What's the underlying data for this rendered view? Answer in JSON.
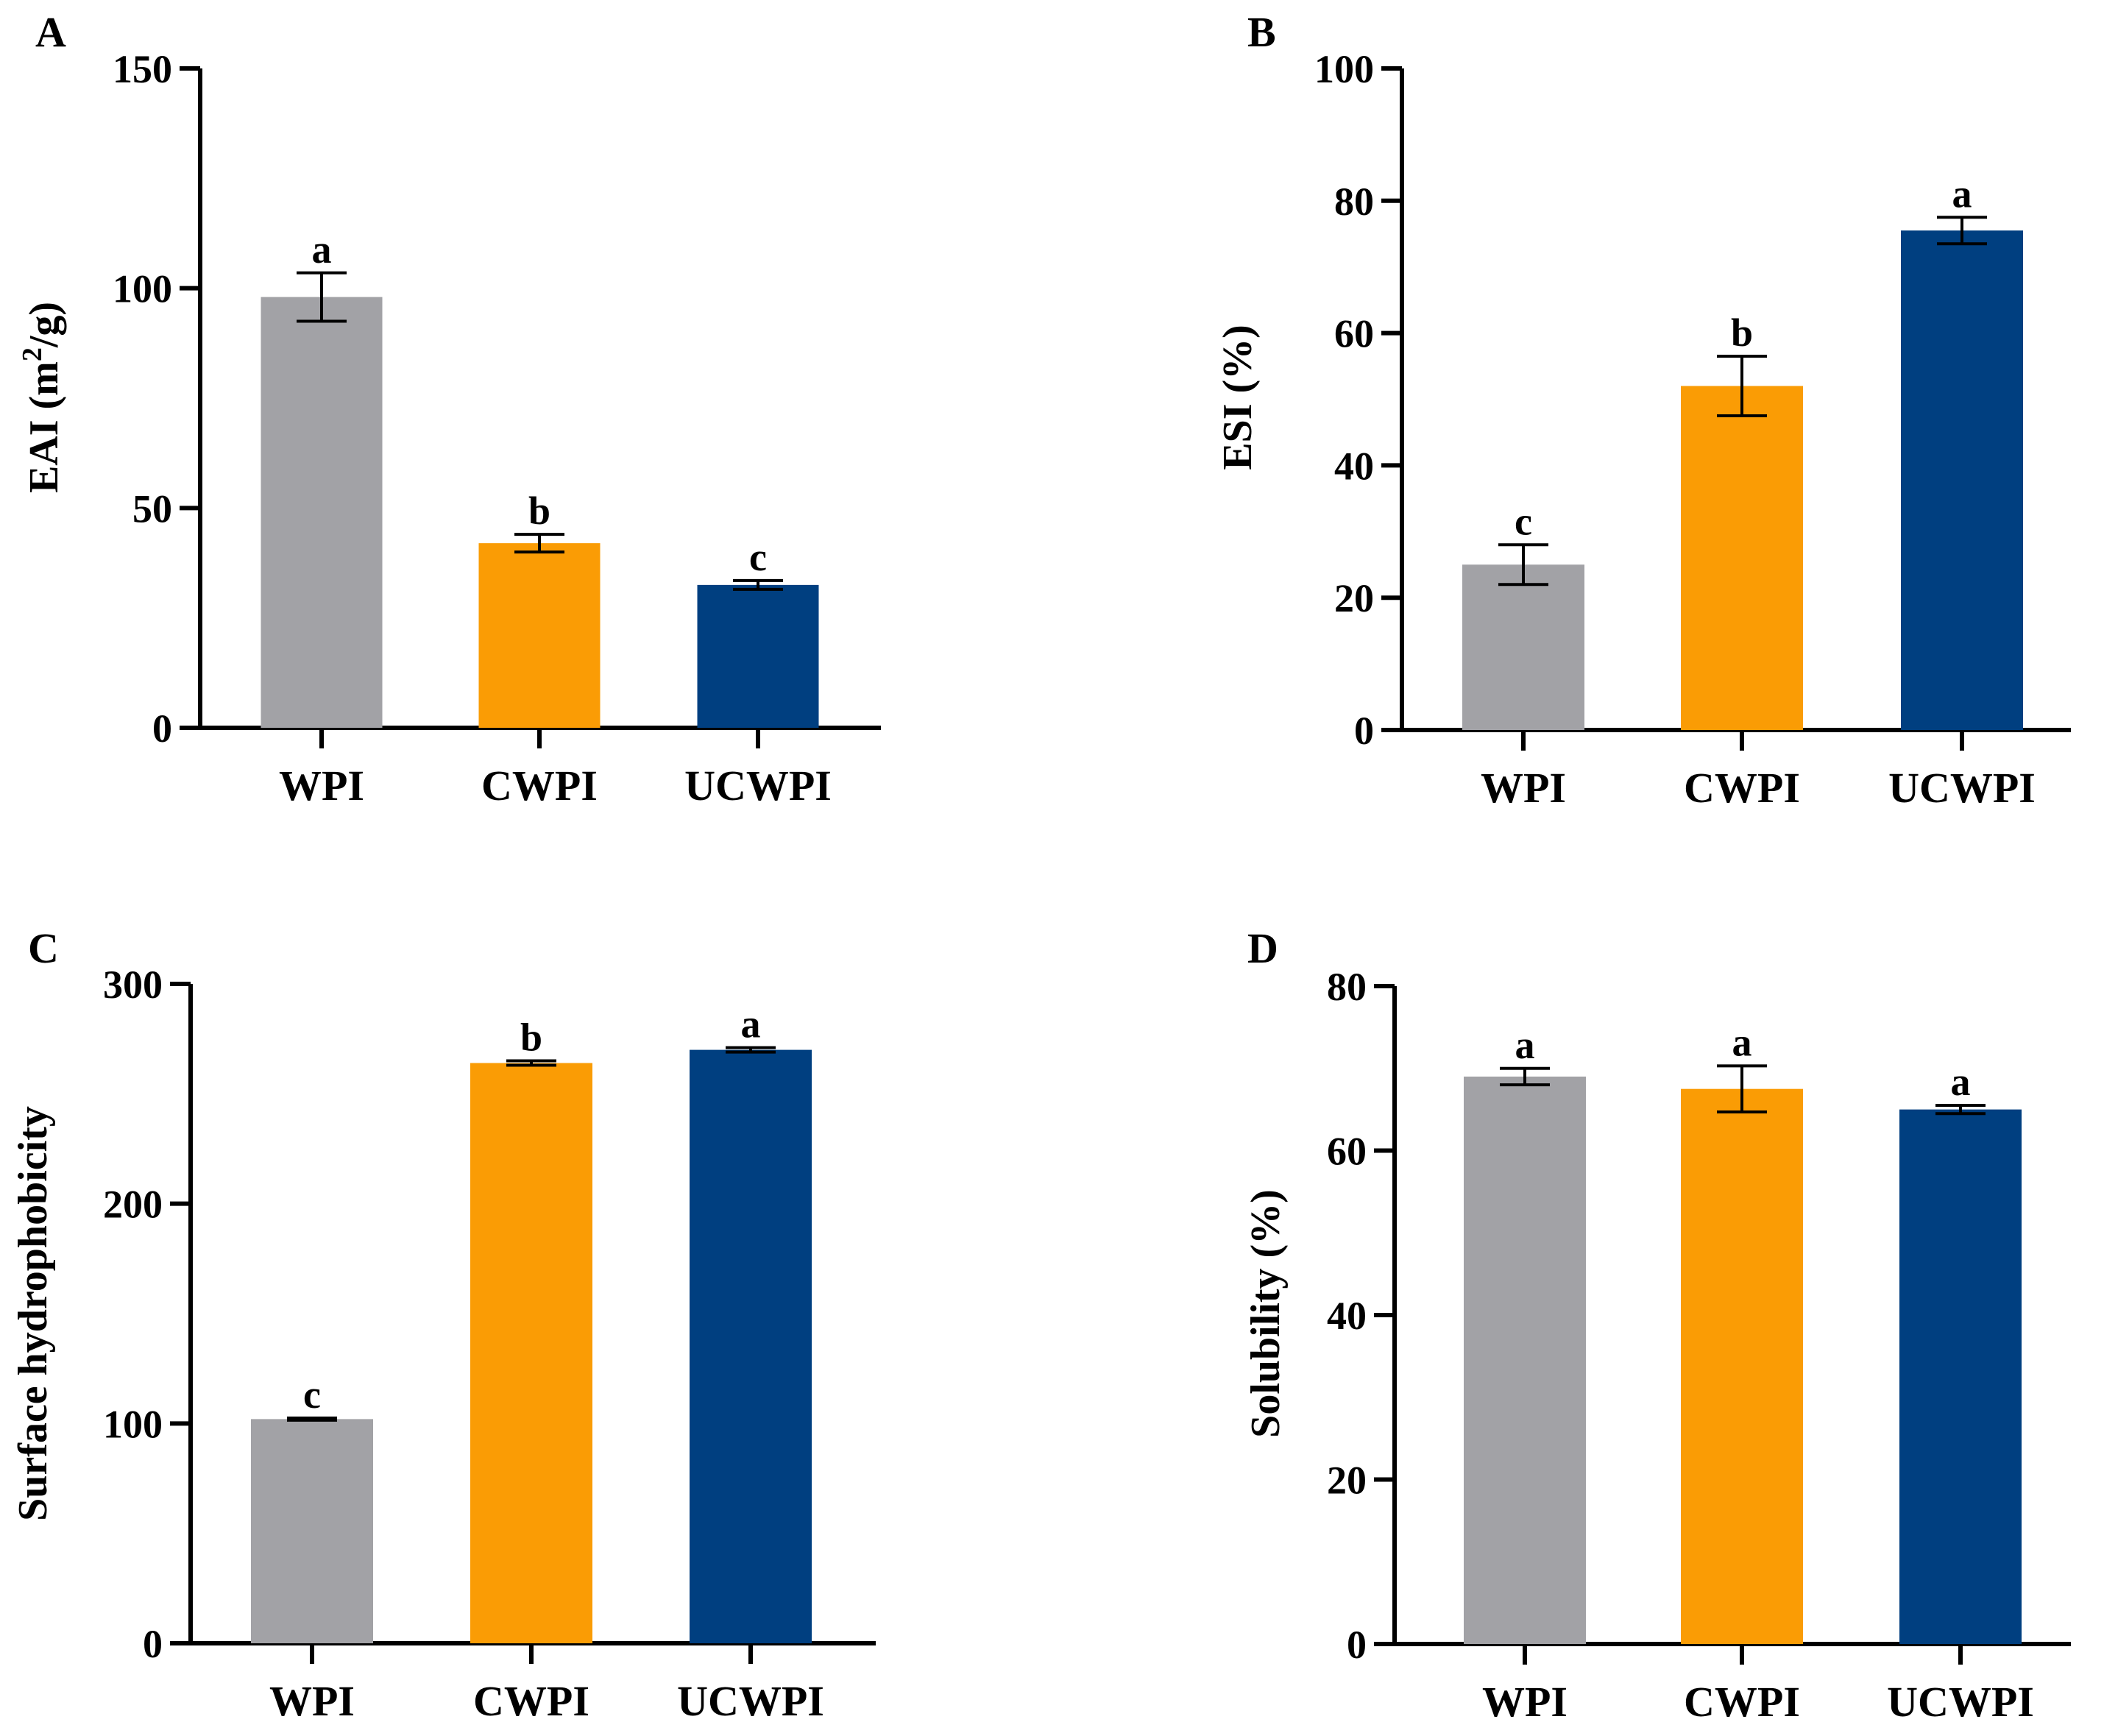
{
  "colors": {
    "WPI": "#a2a2a6",
    "CWPI": "#fa9c05",
    "UCWPI": "#003f80",
    "axis": "#000000"
  },
  "chart_data": [
    {
      "panel": "A",
      "type": "bar",
      "ylabel_main": "EAI (m",
      "ylabel_sup": "2",
      "ylabel_end": "/g)",
      "ylim": [
        0,
        150
      ],
      "yticks": [
        0,
        50,
        100,
        150
      ],
      "categories": [
        "WPI",
        "CWPI",
        "UCWPI"
      ],
      "values": [
        98,
        42,
        32.5
      ],
      "errors": [
        5.5,
        2,
        1
      ],
      "letters": [
        "a",
        "b",
        "c"
      ]
    },
    {
      "panel": "B",
      "type": "bar",
      "ylabel": "ESI (%)",
      "ylim": [
        0,
        100
      ],
      "yticks": [
        0,
        20,
        40,
        60,
        80,
        100
      ],
      "categories": [
        "WPI",
        "CWPI",
        "UCWPI"
      ],
      "values": [
        25,
        52,
        75.5
      ],
      "errors": [
        3,
        4.5,
        2
      ],
      "letters": [
        "c",
        "b",
        "a"
      ]
    },
    {
      "panel": "C",
      "type": "bar",
      "ylabel": "Surface hydrophobicity",
      "ylim": [
        0,
        300
      ],
      "yticks": [
        0,
        100,
        200,
        300
      ],
      "categories": [
        "WPI",
        "CWPI",
        "UCWPI"
      ],
      "values": [
        102,
        264,
        270
      ],
      "errors": [
        0.5,
        1,
        1
      ],
      "letters": [
        "c",
        "b",
        "a"
      ]
    },
    {
      "panel": "D",
      "type": "bar",
      "ylabel": "Solubility (%)",
      "ylim": [
        0,
        80
      ],
      "yticks": [
        0,
        20,
        40,
        60,
        80
      ],
      "categories": [
        "WPI",
        "CWPI",
        "UCWPI"
      ],
      "values": [
        69,
        67.5,
        65
      ],
      "errors": [
        1,
        2.8,
        0.5
      ],
      "letters": [
        "a",
        "a",
        "a"
      ]
    }
  ]
}
